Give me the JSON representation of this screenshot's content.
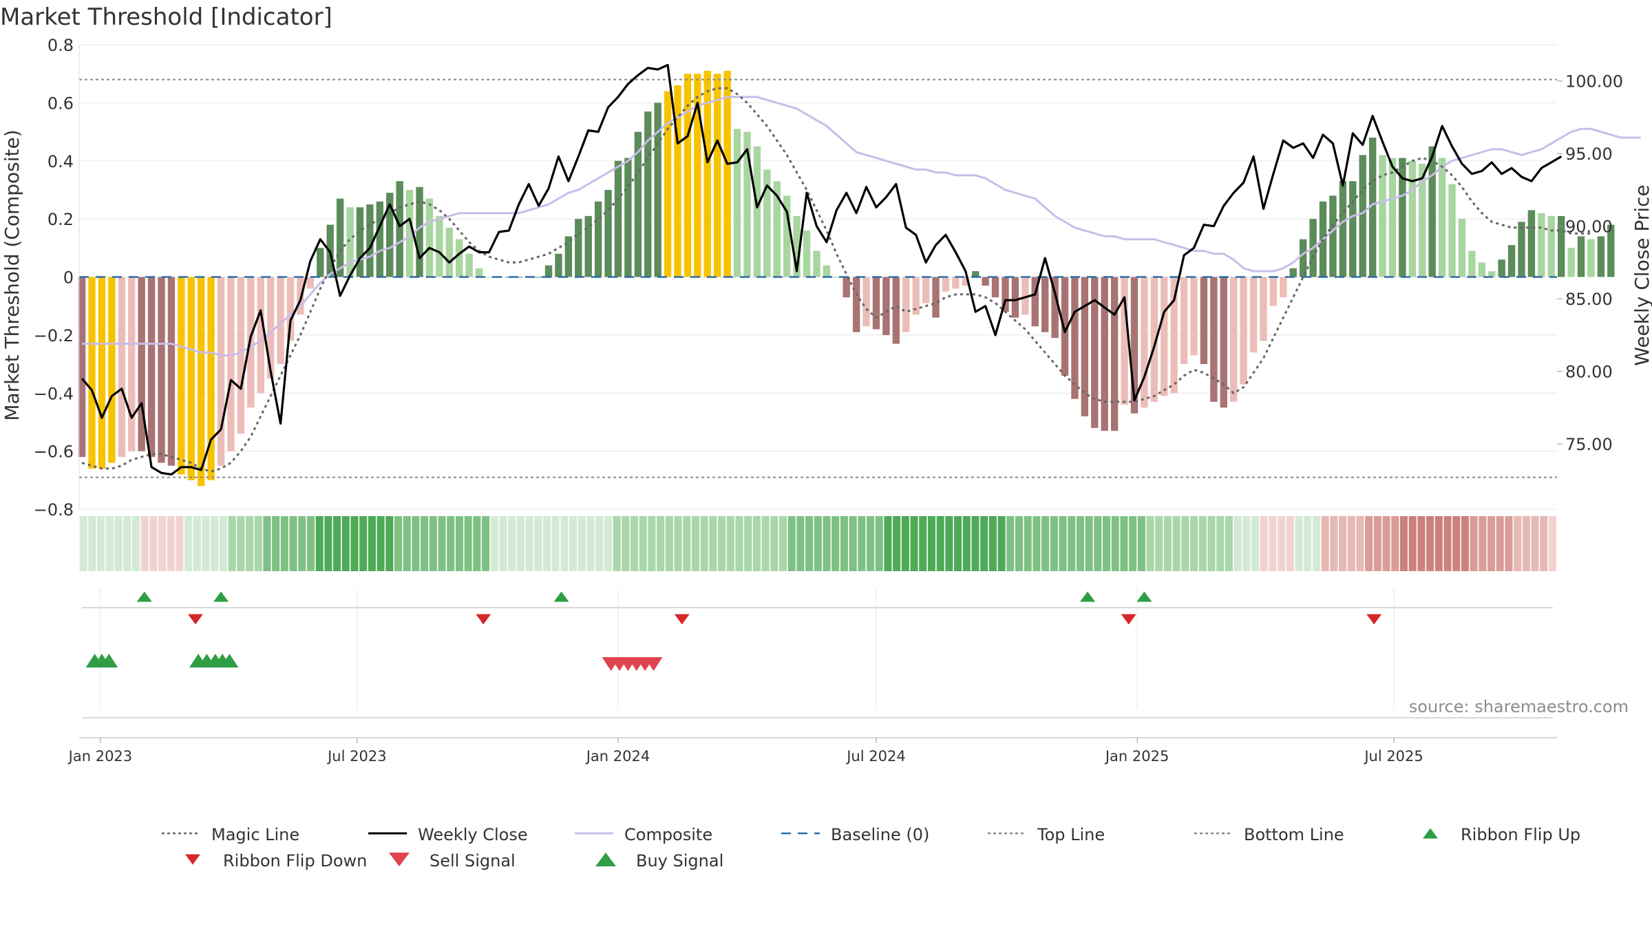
{
  "chart_data": {
    "type": "bar",
    "title": "Market Threshold [Indicator]",
    "ylabel": "Market Threshold (Composite)",
    "ylabel_right": "Weekly Close Price",
    "source": "source: sharemaestro.com",
    "ylim": [
      -0.8,
      0.8
    ],
    "ylim_right": [
      70.5,
      102.5
    ],
    "yticks": [
      {
        "v": 0.8,
        "label": "0.8"
      },
      {
        "v": 0.6,
        "label": "0.6"
      },
      {
        "v": 0.4,
        "label": "0.4"
      },
      {
        "v": 0.2,
        "label": "0.2"
      },
      {
        "v": 0,
        "label": "0"
      },
      {
        "v": -0.2,
        "label": "−0.2"
      },
      {
        "v": -0.4,
        "label": "−0.4"
      },
      {
        "v": -0.6,
        "label": "−0.6"
      },
      {
        "v": -0.8,
        "label": "−0.8"
      }
    ],
    "yticks_right": [
      {
        "v": 100,
        "label": "100.00"
      },
      {
        "v": 95,
        "label": "95.00"
      },
      {
        "v": 90,
        "label": "90.00"
      },
      {
        "v": 85,
        "label": "85.00"
      },
      {
        "v": 80,
        "label": "80.00"
      },
      {
        "v": 75,
        "label": "75.00"
      }
    ],
    "x_start": "2022-12-19",
    "x_step_days": 7,
    "xlim": [
      "2022-12-17",
      "2025-10-24"
    ],
    "xticks": [
      {
        "date": "2023-01-01",
        "label": "Jan 2023"
      },
      {
        "date": "2023-07-01",
        "label": "Jul 2023"
      },
      {
        "date": "2024-01-01",
        "label": "Jan 2024"
      },
      {
        "date": "2024-07-01",
        "label": "Jul 2024"
      },
      {
        "date": "2025-01-01",
        "label": "Jan 2025"
      },
      {
        "date": "2025-07-01",
        "label": "Jul 2025"
      }
    ],
    "top_line": 0.68,
    "bottom_line": -0.69,
    "colors": {
      "strong_pos": "#5b8c5a",
      "weak_pos": "#a8d5a0",
      "strong_neg": "#a87372",
      "weak_neg": "#ecbdb8",
      "extreme": "#f7c300",
      "close": "#000000",
      "composite": "#c8bde8",
      "magic": "#666666",
      "baseline": "#2e6da4",
      "threshold": "#888888",
      "flip_up": "#2f9e44",
      "flip_down": "#d62728",
      "buy": "#2f9e44",
      "sell": "#e0444e"
    },
    "series": [
      {
        "name": "Composite Bars",
        "key": "bars",
        "values": [
          -0.62,
          -0.66,
          -0.66,
          -0.64,
          -0.62,
          -0.6,
          -0.6,
          -0.62,
          -0.64,
          -0.65,
          -0.68,
          -0.7,
          -0.72,
          -0.7,
          -0.65,
          -0.6,
          -0.54,
          -0.45,
          -0.4,
          -0.35,
          -0.3,
          -0.22,
          -0.13,
          -0.04,
          0.1,
          0.18,
          0.27,
          0.24,
          0.24,
          0.25,
          0.26,
          0.29,
          0.33,
          0.3,
          0.31,
          0.27,
          0.21,
          0.17,
          0.13,
          0.08,
          0.03,
          0,
          0,
          0,
          0,
          0,
          0,
          0.04,
          0.08,
          0.14,
          0.2,
          0.21,
          0.26,
          0.3,
          0.4,
          0.41,
          0.5,
          0.57,
          0.6,
          0.64,
          0.66,
          0.7,
          0.7,
          0.71,
          0.7,
          0.71,
          0.51,
          0.5,
          0.45,
          0.37,
          0.33,
          0.28,
          0.21,
          0.16,
          0.09,
          0.04,
          0,
          -0.07,
          -0.19,
          -0.17,
          -0.18,
          -0.2,
          -0.23,
          -0.19,
          -0.13,
          -0.09,
          -0.14,
          -0.05,
          -0.04,
          -0.03,
          0.02,
          -0.03,
          -0.07,
          -0.12,
          -0.14,
          -0.13,
          -0.17,
          -0.19,
          -0.21,
          -0.34,
          -0.42,
          -0.48,
          -0.52,
          -0.53,
          -0.53,
          -0.44,
          -0.47,
          -0.45,
          -0.43,
          -0.41,
          -0.4,
          -0.3,
          -0.27,
          -0.3,
          -0.43,
          -0.45,
          -0.43,
          -0.37,
          -0.26,
          -0.22,
          -0.1,
          -0.07,
          0.03,
          0.13,
          0.2,
          0.26,
          0.28,
          0.33,
          0.33,
          0.42,
          0.48,
          0.42,
          0.41,
          0.41,
          0.4,
          0.39,
          0.45,
          0.41,
          0.32,
          0.2,
          0.09,
          0.05,
          0.02,
          0.06,
          0.11,
          0.19,
          0.23,
          0.22,
          0.21,
          0.21,
          0.1,
          0.14,
          0.13,
          0.14,
          0.18
        ]
      },
      {
        "name": "Magic Line",
        "key": "magic",
        "values": [
          -0.64,
          -0.65,
          -0.66,
          -0.66,
          -0.65,
          -0.63,
          -0.62,
          -0.61,
          -0.61,
          -0.62,
          -0.63,
          -0.64,
          -0.66,
          -0.67,
          -0.66,
          -0.64,
          -0.6,
          -0.55,
          -0.48,
          -0.41,
          -0.34,
          -0.27,
          -0.2,
          -0.12,
          -0.04,
          0.03,
          0.09,
          0.13,
          0.16,
          0.18,
          0.2,
          0.22,
          0.24,
          0.25,
          0.26,
          0.25,
          0.23,
          0.2,
          0.16,
          0.12,
          0.09,
          0.07,
          0.06,
          0.05,
          0.05,
          0.06,
          0.07,
          0.08,
          0.1,
          0.12,
          0.15,
          0.17,
          0.2,
          0.23,
          0.27,
          0.31,
          0.36,
          0.41,
          0.46,
          0.51,
          0.55,
          0.59,
          0.62,
          0.64,
          0.65,
          0.65,
          0.63,
          0.6,
          0.56,
          0.52,
          0.47,
          0.42,
          0.36,
          0.3,
          0.23,
          0.16,
          0.08,
          0.01,
          -0.06,
          -0.11,
          -0.14,
          -0.12,
          -0.1,
          -0.12,
          -0.11,
          -0.1,
          -0.09,
          -0.07,
          -0.06,
          -0.06,
          -0.06,
          -0.07,
          -0.09,
          -0.12,
          -0.15,
          -0.18,
          -0.22,
          -0.26,
          -0.3,
          -0.34,
          -0.37,
          -0.4,
          -0.42,
          -0.43,
          -0.43,
          -0.43,
          -0.43,
          -0.42,
          -0.41,
          -0.39,
          -0.37,
          -0.34,
          -0.32,
          -0.33,
          -0.35,
          -0.37,
          -0.4,
          -0.38,
          -0.33,
          -0.28,
          -0.21,
          -0.14,
          -0.07,
          0.0,
          0.07,
          0.13,
          0.18,
          0.22,
          0.26,
          0.3,
          0.33,
          0.35,
          0.36,
          0.38,
          0.4,
          0.41,
          0.4,
          0.38,
          0.35,
          0.31,
          0.26,
          0.22,
          0.19,
          0.18,
          0.17,
          0.17,
          0.17,
          0.17,
          0.16,
          0.16,
          0.15,
          0.15,
          0.15
        ]
      },
      {
        "name": "Weekly Close",
        "key": "close",
        "values": [
          79.5,
          78.7,
          76.8,
          78.3,
          78.8,
          76.8,
          77.8,
          73.4,
          73.0,
          72.9,
          73.4,
          73.4,
          73.2,
          75.3,
          76.0,
          79.4,
          78.8,
          82.4,
          84.2,
          80.0,
          76.4,
          83.5,
          84.9,
          87.6,
          89.1,
          88.2,
          85.2,
          86.6,
          87.8,
          88.5,
          90.0,
          91.5,
          90.0,
          90.5,
          87.8,
          88.5,
          88.2,
          87.5,
          88.1,
          88.6,
          88.2,
          88.2,
          89.6,
          89.7,
          91.5,
          92.9,
          91.4,
          92.6,
          94.8,
          93.1,
          94.8,
          96.6,
          96.5,
          98.2,
          98.9,
          99.8,
          100.4,
          100.9,
          100.8,
          101.1,
          95.7,
          96.2,
          98.5,
          94.4,
          95.9,
          94.3,
          94.4,
          95.3,
          91.3,
          92.8,
          92.1,
          91.0,
          86.9,
          92.3,
          90.0,
          88.9,
          91.1,
          92.3,
          90.9,
          92.7,
          91.3,
          92.0,
          92.9,
          89.9,
          89.4,
          87.5,
          88.7,
          89.4,
          88.2,
          86.9,
          84.1,
          84.5,
          82.5,
          84.9,
          84.9,
          85.1,
          85.3,
          87.8,
          85.4,
          82.7,
          84.1,
          84.5,
          84.9,
          84.4,
          83.9,
          85.1,
          78.0,
          79.6,
          81.7,
          84.1,
          84.9,
          88.0,
          88.5,
          90.1,
          90.0,
          91.4,
          92.3,
          93.0,
          94.8,
          91.2,
          93.6,
          95.9,
          95.4,
          95.7,
          94.7,
          96.3,
          95.7,
          92.8,
          96.4,
          95.6,
          97.6,
          95.8,
          94.1,
          93.3,
          93.1,
          93.3,
          94.8,
          96.9,
          95.5,
          94.3,
          93.6,
          93.8,
          94.4,
          93.6,
          94.0,
          93.4,
          93.1,
          94.0,
          94.4,
          94.8
        ]
      },
      {
        "name": "Composite",
        "key": "composite",
        "values": [
          -0.23,
          -0.23,
          -0.23,
          -0.23,
          -0.23,
          -0.23,
          -0.23,
          -0.23,
          -0.23,
          -0.23,
          -0.24,
          -0.25,
          -0.26,
          -0.26,
          -0.27,
          -0.27,
          -0.26,
          -0.24,
          -0.22,
          -0.19,
          -0.16,
          -0.13,
          -0.1,
          -0.06,
          -0.02,
          0.01,
          0.03,
          0.05,
          0.06,
          0.07,
          0.09,
          0.1,
          0.12,
          0.14,
          0.17,
          0.19,
          0.2,
          0.21,
          0.22,
          0.22,
          0.22,
          0.22,
          0.22,
          0.22,
          0.22,
          0.23,
          0.24,
          0.25,
          0.27,
          0.29,
          0.3,
          0.32,
          0.34,
          0.36,
          0.38,
          0.4,
          0.43,
          0.47,
          0.5,
          0.53,
          0.55,
          0.57,
          0.59,
          0.6,
          0.61,
          0.62,
          0.62,
          0.62,
          0.62,
          0.61,
          0.6,
          0.59,
          0.58,
          0.56,
          0.54,
          0.52,
          0.49,
          0.46,
          0.43,
          0.42,
          0.41,
          0.4,
          0.39,
          0.38,
          0.37,
          0.37,
          0.36,
          0.36,
          0.35,
          0.35,
          0.35,
          0.34,
          0.32,
          0.3,
          0.29,
          0.28,
          0.27,
          0.24,
          0.21,
          0.19,
          0.17,
          0.16,
          0.15,
          0.14,
          0.14,
          0.13,
          0.13,
          0.13,
          0.13,
          0.12,
          0.11,
          0.1,
          0.09,
          0.09,
          0.08,
          0.08,
          0.06,
          0.03,
          0.02,
          0.02,
          0.02,
          0.03,
          0.05,
          0.08,
          0.1,
          0.13,
          0.16,
          0.19,
          0.21,
          0.22,
          0.25,
          0.26,
          0.27,
          0.28,
          0.3,
          0.33,
          0.35,
          0.38,
          0.4,
          0.41,
          0.42,
          0.43,
          0.44,
          0.44,
          0.43,
          0.42,
          0.43,
          0.44,
          0.46,
          0.48,
          0.5,
          0.51,
          0.51,
          0.5,
          0.49,
          0.48,
          0.48,
          0.48
        ]
      },
      {
        "name": "Baseline (0)",
        "key": "baseline"
      },
      {
        "name": "Top Line",
        "key": "top"
      },
      {
        "name": "Bottom Line",
        "key": "bottom"
      },
      {
        "name": "Ribbon Flip Up",
        "key": "flip_up"
      },
      {
        "name": "Ribbon Flip Down",
        "key": "flip_down"
      },
      {
        "name": "Sell Signal",
        "key": "sell"
      },
      {
        "name": "Buy Signal",
        "key": "buy"
      }
    ],
    "extreme_bars": [
      1,
      2,
      3,
      10,
      11,
      12,
      13,
      59,
      60,
      61,
      62,
      63,
      64,
      65
    ],
    "ribbon_shades": [
      1,
      1,
      1,
      1,
      1,
      1,
      1,
      -1,
      -1,
      -1,
      -1,
      -1,
      1,
      1,
      1,
      1,
      1,
      2,
      2,
      2,
      2,
      3,
      3,
      3,
      3,
      3,
      3,
      4,
      4,
      4,
      4,
      4,
      4,
      4,
      4,
      4,
      3,
      3,
      3,
      3,
      3,
      3,
      3,
      3,
      3,
      3,
      3,
      1,
      1,
      1,
      1,
      1,
      1,
      1,
      1,
      1,
      1,
      1,
      1,
      1,
      1,
      2,
      2,
      2,
      2,
      2,
      2,
      2,
      2,
      2,
      2,
      2,
      2,
      2,
      2,
      2,
      2,
      2,
      2,
      2,
      2,
      3,
      3,
      3,
      3,
      3,
      3,
      3,
      3,
      3,
      3,
      3,
      4,
      4,
      4,
      4,
      4,
      4,
      4,
      4,
      4,
      4,
      4,
      4,
      4,
      4,
      3,
      3,
      3,
      3,
      3,
      3,
      3,
      3,
      3,
      3,
      3,
      3,
      3,
      3,
      3,
      3,
      2,
      2,
      2,
      2,
      2,
      2,
      2,
      2,
      2,
      2,
      1,
      1,
      1,
      -1,
      -1,
      -1,
      -1,
      1,
      1,
      1,
      -2,
      -2,
      -2,
      -2,
      -2,
      -3,
      -3,
      -3,
      -3,
      -4,
      -4,
      -4,
      -4,
      -4,
      -4,
      -4,
      -4,
      -3,
      -3,
      -3,
      -3,
      -3,
      -2,
      -2,
      -2,
      -2,
      -1
    ],
    "ribbon_flip_up_dates": [
      "2023-02-01",
      "2023-03-27",
      "2023-11-22",
      "2024-11-27",
      "2025-01-06"
    ],
    "ribbon_flip_down_dates": [
      "2023-03-09",
      "2023-09-28",
      "2024-02-15",
      "2024-12-26",
      "2025-06-17"
    ],
    "buy_signal_dates": [
      "2022-12-28",
      "2023-01-02",
      "2023-01-07",
      "2023-03-11",
      "2023-03-17",
      "2023-03-23",
      "2023-03-28",
      "2023-04-02"
    ],
    "sell_signal_dates": [
      "2023-12-27",
      "2024-01-02",
      "2024-01-08",
      "2024-01-14",
      "2024-01-20",
      "2024-01-26"
    ]
  },
  "legend": [
    {
      "label": "Magic Line",
      "type": "dotted",
      "color": "#666666"
    },
    {
      "label": "Weekly Close",
      "type": "solid",
      "color": "#000000"
    },
    {
      "label": "Composite",
      "type": "solid",
      "color": "#c8bde8"
    },
    {
      "label": "Baseline (0)",
      "type": "dashed",
      "color": "#2e6da4"
    },
    {
      "label": "Top Line",
      "type": "dotted",
      "color": "#888888"
    },
    {
      "label": "Bottom Line",
      "type": "dotted",
      "color": "#888888"
    },
    {
      "label": "Ribbon Flip Up",
      "type": "tri-up",
      "color": "#2f9e44"
    },
    {
      "label": "Ribbon Flip Down",
      "type": "tri-down",
      "color": "#d62728"
    },
    {
      "label": "Sell Signal",
      "type": "tri-down-big",
      "color": "#e0444e"
    },
    {
      "label": "Buy Signal",
      "type": "tri-up-big",
      "color": "#2f9e44"
    }
  ]
}
